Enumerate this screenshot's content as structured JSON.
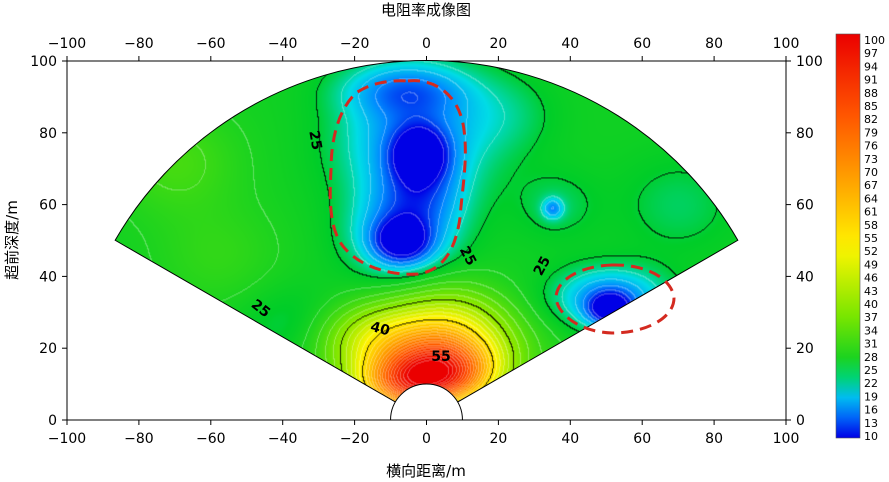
{
  "chart_data": {
    "type": "heatmap",
    "title": "电阻率成像图",
    "xlabel": "横向距离/m",
    "ylabel": "超前深度/m",
    "xlim": [
      -100,
      100
    ],
    "ylim": [
      0,
      100
    ],
    "x_ticks": [
      -100,
      -80,
      -60,
      -40,
      -20,
      0,
      20,
      40,
      60,
      80,
      100
    ],
    "y_ticks": [
      0,
      20,
      40,
      60,
      80,
      100
    ],
    "fan": {
      "apex_x": 0,
      "apex_y": 0,
      "radius": 100,
      "half_angle_deg": 60,
      "inner_radius": 10
    },
    "colorbar": {
      "min": 10,
      "max": 100,
      "ticks": [
        100,
        97,
        94,
        91,
        88,
        85,
        82,
        79,
        76,
        73,
        70,
        67,
        64,
        61,
        58,
        55,
        52,
        49,
        46,
        43,
        40,
        37,
        34,
        31,
        28,
        25,
        22,
        19,
        16,
        13,
        10
      ]
    },
    "field": {
      "background": 27,
      "features": [
        {
          "x": -2,
          "y": 74,
          "value": 10,
          "sx": 5,
          "sy": 5
        },
        {
          "x": -4,
          "y": 78,
          "value": 16,
          "sx": 14,
          "sy": 14
        },
        {
          "x": -6,
          "y": 92,
          "value": 20,
          "sx": 12,
          "sy": 5
        },
        {
          "x": -7,
          "y": 50,
          "value": 13,
          "sx": 5,
          "sy": 4
        },
        {
          "x": -7,
          "y": 51,
          "value": 17,
          "sx": 10,
          "sy": 8
        },
        {
          "x": -2,
          "y": 63,
          "value": 21,
          "sx": 8,
          "sy": 7
        },
        {
          "x": 51,
          "y": 31,
          "value": 10,
          "sx": 4,
          "sy": 3
        },
        {
          "x": 51,
          "y": 34,
          "value": 16,
          "sx": 11,
          "sy": 6
        },
        {
          "x": 35,
          "y": 59,
          "value": 19,
          "sx": 2,
          "sy": 2
        },
        {
          "x": 36,
          "y": 60,
          "value": 24,
          "sx": 8,
          "sy": 7
        },
        {
          "x": -6,
          "y": 10,
          "value": 66,
          "sx": 9,
          "sy": 6
        },
        {
          "x": 6,
          "y": 13,
          "value": 64,
          "sx": 9,
          "sy": 6
        },
        {
          "x": 0,
          "y": 18,
          "value": 50,
          "sx": 16,
          "sy": 8
        },
        {
          "x": 6,
          "y": 26,
          "value": 42,
          "sx": 11,
          "sy": 8
        },
        {
          "x": -14,
          "y": 24,
          "value": 37,
          "sx": 10,
          "sy": 6
        },
        {
          "x": -70,
          "y": 72,
          "value": 32,
          "sx": 12,
          "sy": 10
        },
        {
          "x": -58,
          "y": 46,
          "value": 30,
          "sx": 12,
          "sy": 10
        },
        {
          "x": -38,
          "y": 26,
          "value": 24,
          "sx": 10,
          "sy": 8
        },
        {
          "x": 70,
          "y": 60,
          "value": 24,
          "sx": 12,
          "sy": 10
        },
        {
          "x": 22,
          "y": 85,
          "value": 24,
          "sx": 10,
          "sy": 8
        }
      ]
    },
    "contour_labels": [
      "25",
      "25",
      "25",
      "25",
      "40",
      "55"
    ]
  }
}
